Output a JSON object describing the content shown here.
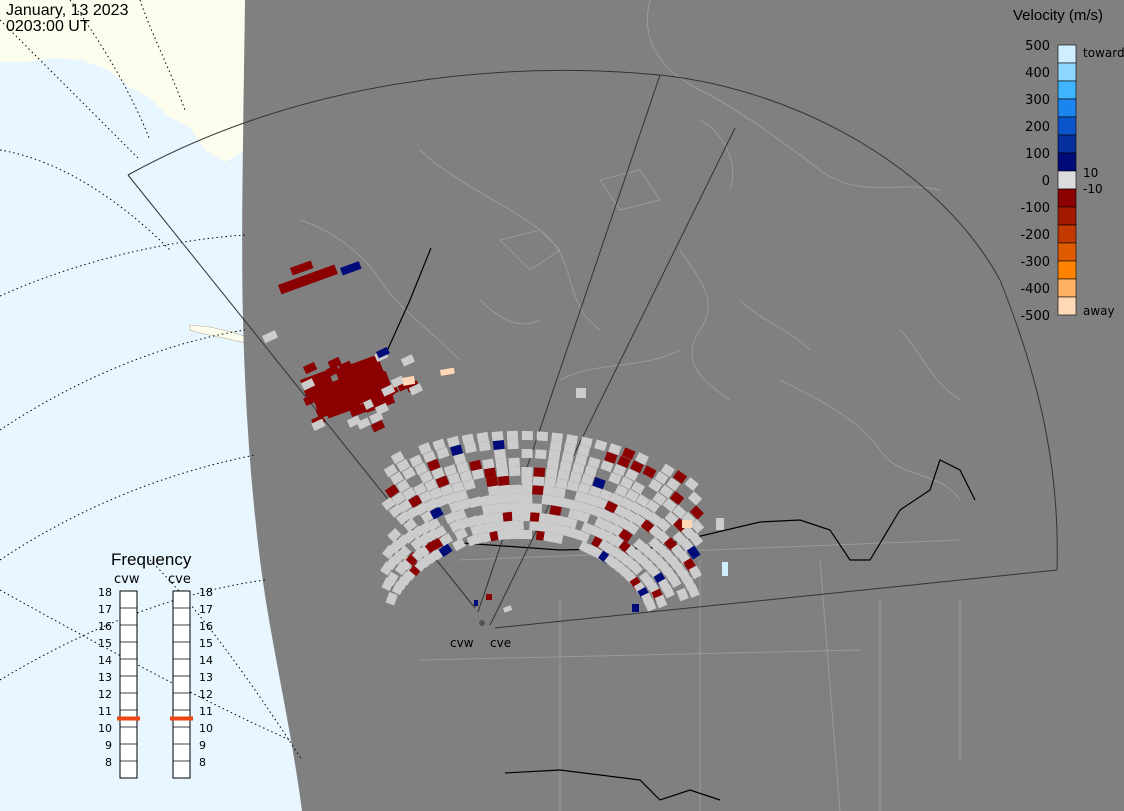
{
  "header": {
    "date": "January, 13 2023",
    "time": "0203:00 UT"
  },
  "legend": {
    "title": "Velocity (m/s)",
    "ticks": [
      "500",
      "400",
      "300",
      "200",
      "100",
      "0",
      "-100",
      "-200",
      "-300",
      "-400",
      "-500"
    ],
    "label_toward": "toward",
    "label_away": "away",
    "label_pos": "10",
    "label_neg": "-10",
    "colors": [
      "#cfeeff",
      "#8dd6ff",
      "#3fb4ff",
      "#1a85ee",
      "#0a55cc",
      "#06309e",
      "#000b7a",
      "#dcdcdc",
      "#8b0000",
      "#a41a00",
      "#c23a00",
      "#e05a00",
      "#ff8300",
      "#ffb060",
      "#ffd8b8"
    ]
  },
  "frequency": {
    "title": "Frequency",
    "radar_left": "cvw",
    "radar_right": "cve",
    "scale": [
      "18",
      "17",
      "16",
      "15",
      "14",
      "13",
      "12",
      "11",
      "10",
      "9",
      "8"
    ],
    "cvw_mhz": 10.5,
    "cve_mhz": 10.5,
    "marker_color": "#ee4411"
  },
  "radar_sites": {
    "left": "cvw",
    "right": "cve"
  },
  "colors": {
    "night": "#808080",
    "ocean": "#e8f6ff",
    "land": "#fdfdee",
    "scatter_ground": "#cccccc",
    "scatter_away": "#8b0000",
    "scatter_toward": "#000b7a"
  }
}
